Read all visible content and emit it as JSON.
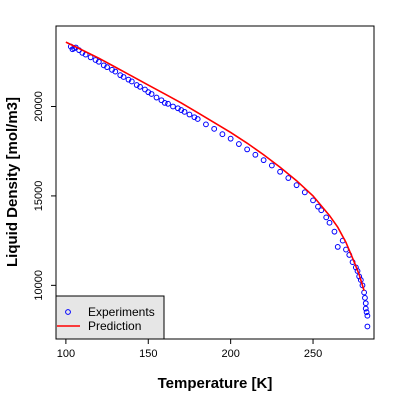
{
  "chart_data": {
    "type": "scatter",
    "xlabel": "Temperature [K]",
    "ylabel": "Liquid Density [mol/m3]",
    "xlim": [
      94,
      287
    ],
    "ylim": [
      7000,
      24500
    ],
    "xticks": [
      100,
      150,
      200,
      250
    ],
    "yticks": [
      10000,
      15000,
      20000
    ],
    "xtick_labels": [
      "100",
      "150",
      "200",
      "250"
    ],
    "ytick_labels": [
      "10000",
      "15000",
      "20000"
    ],
    "grid": false,
    "legend": {
      "position": "bottom-left",
      "entries": [
        {
          "label": "Experiments",
          "marker": "circle-open",
          "color": "#0000ff"
        },
        {
          "label": "Prediction",
          "marker": "line",
          "color": "#ff0000"
        }
      ]
    },
    "series": [
      {
        "name": "Experiments",
        "style": "points",
        "color": "#0000ff",
        "x": [
          103,
          104,
          105,
          106,
          108,
          110,
          112,
          115,
          118,
          120,
          123,
          125,
          128,
          130,
          133,
          135,
          138,
          140,
          143,
          145,
          148,
          150,
          152,
          155,
          158,
          160,
          162,
          165,
          168,
          170,
          172,
          175,
          178,
          180,
          185,
          190,
          195,
          200,
          205,
          210,
          215,
          220,
          225,
          230,
          235,
          240,
          245,
          250,
          253,
          255,
          258,
          260,
          263,
          265,
          268,
          270,
          272,
          274,
          276,
          277,
          278,
          279,
          280,
          281,
          281.5,
          282,
          282,
          282.5,
          283,
          283
        ],
        "y": [
          23350,
          23200,
          23250,
          23300,
          23150,
          23000,
          22900,
          22750,
          22600,
          22500,
          22300,
          22200,
          22050,
          21950,
          21750,
          21650,
          21500,
          21400,
          21200,
          21100,
          20950,
          20800,
          20700,
          20500,
          20350,
          20200,
          20150,
          20000,
          19900,
          19800,
          19700,
          19550,
          19400,
          19300,
          19000,
          18750,
          18450,
          18200,
          17900,
          17600,
          17300,
          17000,
          16700,
          16350,
          16000,
          15600,
          15200,
          14750,
          14400,
          14200,
          13800,
          13500,
          13000,
          12150,
          12500,
          12000,
          11700,
          11300,
          11000,
          10800,
          10500,
          10300,
          10000,
          9600,
          9300,
          9000,
          8700,
          8500,
          8300,
          7700
        ]
      },
      {
        "name": "Prediction",
        "style": "line",
        "color": "#ff0000",
        "x": [
          100,
          110,
          120,
          130,
          140,
          150,
          160,
          170,
          180,
          190,
          200,
          210,
          220,
          230,
          240,
          250,
          260,
          265,
          270,
          275,
          278,
          280,
          281
        ],
        "y": [
          23600,
          23150,
          22700,
          22200,
          21700,
          21200,
          20700,
          20200,
          19650,
          19100,
          18550,
          17950,
          17300,
          16600,
          15850,
          15000,
          13900,
          13250,
          12400,
          11300,
          10600,
          10000,
          9700
        ]
      }
    ]
  }
}
